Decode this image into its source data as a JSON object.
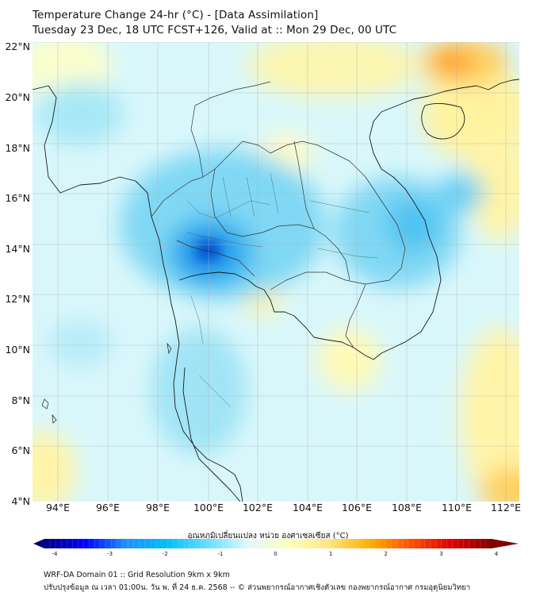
{
  "header": {
    "title_line1": "Temperature Change 24-hr (°C) - [Data Assimilation]",
    "title_line2": "Tuesday 23 Dec, 18 UTC FCST+126, Valid at :: Mon 29 Dec, 00 UTC"
  },
  "map": {
    "lat_labels": [
      "22°N",
      "20°N",
      "18°N",
      "16°N",
      "14°N",
      "12°N",
      "10°N",
      "8°N",
      "6°N",
      "4°N"
    ],
    "lon_labels": [
      "94°E",
      "96°E",
      "98°E",
      "100°E",
      "102°E",
      "104°E",
      "106°E",
      "108°E",
      "110°E",
      "112°E"
    ],
    "background_color": "#d9f7fb"
  },
  "colorbar": {
    "label": "อุณหภูมิเปลี่ยนแปลง หน่วย องศาเซลเซียส (°C)",
    "ticks": [
      "-4",
      "-3",
      "-2",
      "-1",
      "0",
      "1",
      "2",
      "3",
      "4"
    ],
    "min": -4,
    "max": 4,
    "colors": [
      "#000080",
      "#0000ff",
      "#1e90ff",
      "#00bfff",
      "#66ddff",
      "#dff9fb",
      "#ffffc0",
      "#ffe680",
      "#ffb000",
      "#ff5000",
      "#e00000",
      "#800000"
    ]
  },
  "footer": {
    "line1": "WRF-DA Domain 01 :: Grid Resolution 9km x 9km",
    "line2": "ปรับปรุงข้อมูล ณ เวลา 01:00น. วัน พ. ที่ 24 ธ.ค. 2568 -- © ส่วนพยากรณ์อากาศเชิงตัวเลข กองพยากรณ์อากาศ กรมอุตุนิยมวิทยา"
  }
}
